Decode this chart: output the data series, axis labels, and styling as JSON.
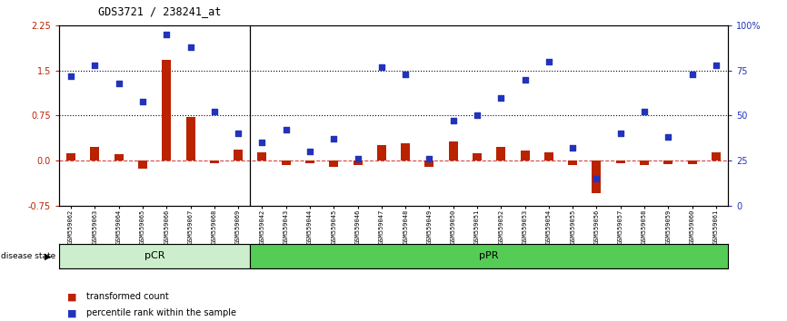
{
  "title": "GDS3721 / 238241_at",
  "samples": [
    "GSM559062",
    "GSM559063",
    "GSM559064",
    "GSM559065",
    "GSM559066",
    "GSM559067",
    "GSM559068",
    "GSM559069",
    "GSM559042",
    "GSM559043",
    "GSM559044",
    "GSM559045",
    "GSM559046",
    "GSM559047",
    "GSM559048",
    "GSM559049",
    "GSM559050",
    "GSM559051",
    "GSM559052",
    "GSM559053",
    "GSM559054",
    "GSM559055",
    "GSM559056",
    "GSM559057",
    "GSM559058",
    "GSM559059",
    "GSM559060",
    "GSM559061"
  ],
  "transformed_count": [
    0.12,
    0.22,
    0.1,
    -0.13,
    1.68,
    0.72,
    -0.05,
    0.18,
    0.14,
    -0.07,
    -0.05,
    -0.1,
    -0.07,
    0.25,
    0.28,
    -0.1,
    0.32,
    0.12,
    0.22,
    0.16,
    0.14,
    -0.08,
    -0.55,
    -0.05,
    -0.08,
    -0.06,
    -0.06,
    0.14
  ],
  "percentile_rank": [
    72,
    78,
    68,
    58,
    95,
    88,
    52,
    40,
    35,
    42,
    30,
    37,
    26,
    77,
    73,
    26,
    47,
    50,
    60,
    70,
    80,
    32,
    15,
    40,
    52,
    38,
    73,
    78
  ],
  "pCR_count": 8,
  "pPR_count": 20,
  "ylim_left": [
    -0.75,
    2.25
  ],
  "ylim_right": [
    0,
    100
  ],
  "yticks_left": [
    -0.75,
    0.0,
    0.75,
    1.5,
    2.25
  ],
  "yticks_right": [
    0,
    25,
    50,
    75,
    100
  ],
  "hline_values": [
    0.75,
    1.5
  ],
  "bar_color": "#bb2200",
  "dot_color": "#2233bb",
  "pCR_color": "#cceecc",
  "pPR_color": "#55cc55",
  "bg_color": "#ffffff",
  "plot_bg": "#ffffff",
  "zero_line_color": "#cc3333",
  "sep_color": "#000000"
}
